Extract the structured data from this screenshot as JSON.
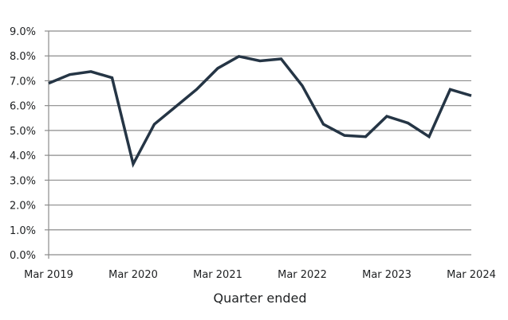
{
  "chart_data": {
    "type": "line",
    "xlabel": "Quarter ended",
    "ylabel": "",
    "title": "",
    "ylim": [
      0,
      9
    ],
    "y_ticks": [
      "0.0%",
      "1.0%",
      "2.0%",
      "3.0%",
      "4.0%",
      "5.0%",
      "6.0%",
      "7.0%",
      "8.0%",
      "9.0%"
    ],
    "x_ticks": [
      "Mar 2019",
      "Mar 2020",
      "Mar 2021",
      "Mar 2022",
      "Mar 2023",
      "Mar 2024"
    ],
    "grid": "horizontal",
    "line_color": "#253545",
    "grid_color": "#8c8c8c",
    "series": [
      {
        "values": [
          6.9,
          7.25,
          7.37,
          7.12,
          3.65,
          5.25,
          5.95,
          6.65,
          7.5,
          7.98,
          7.8,
          7.88,
          6.8,
          5.25,
          4.8,
          4.75,
          5.57,
          5.3,
          4.75,
          6.65,
          6.4
        ]
      }
    ],
    "categories": [
      "Mar 2019",
      "Jun 2019",
      "Sep 2019",
      "Dec 2019",
      "Mar 2020",
      "Jun 2020",
      "Sep 2020",
      "Dec 2020",
      "Mar 2021",
      "Jun 2021",
      "Sep 2021",
      "Dec 2021",
      "Mar 2022",
      "Jun 2022",
      "Sep 2022",
      "Dec 2022",
      "Mar 2023",
      "Jun 2023",
      "Sep 2023",
      "Dec 2023",
      "Mar 2024"
    ]
  }
}
